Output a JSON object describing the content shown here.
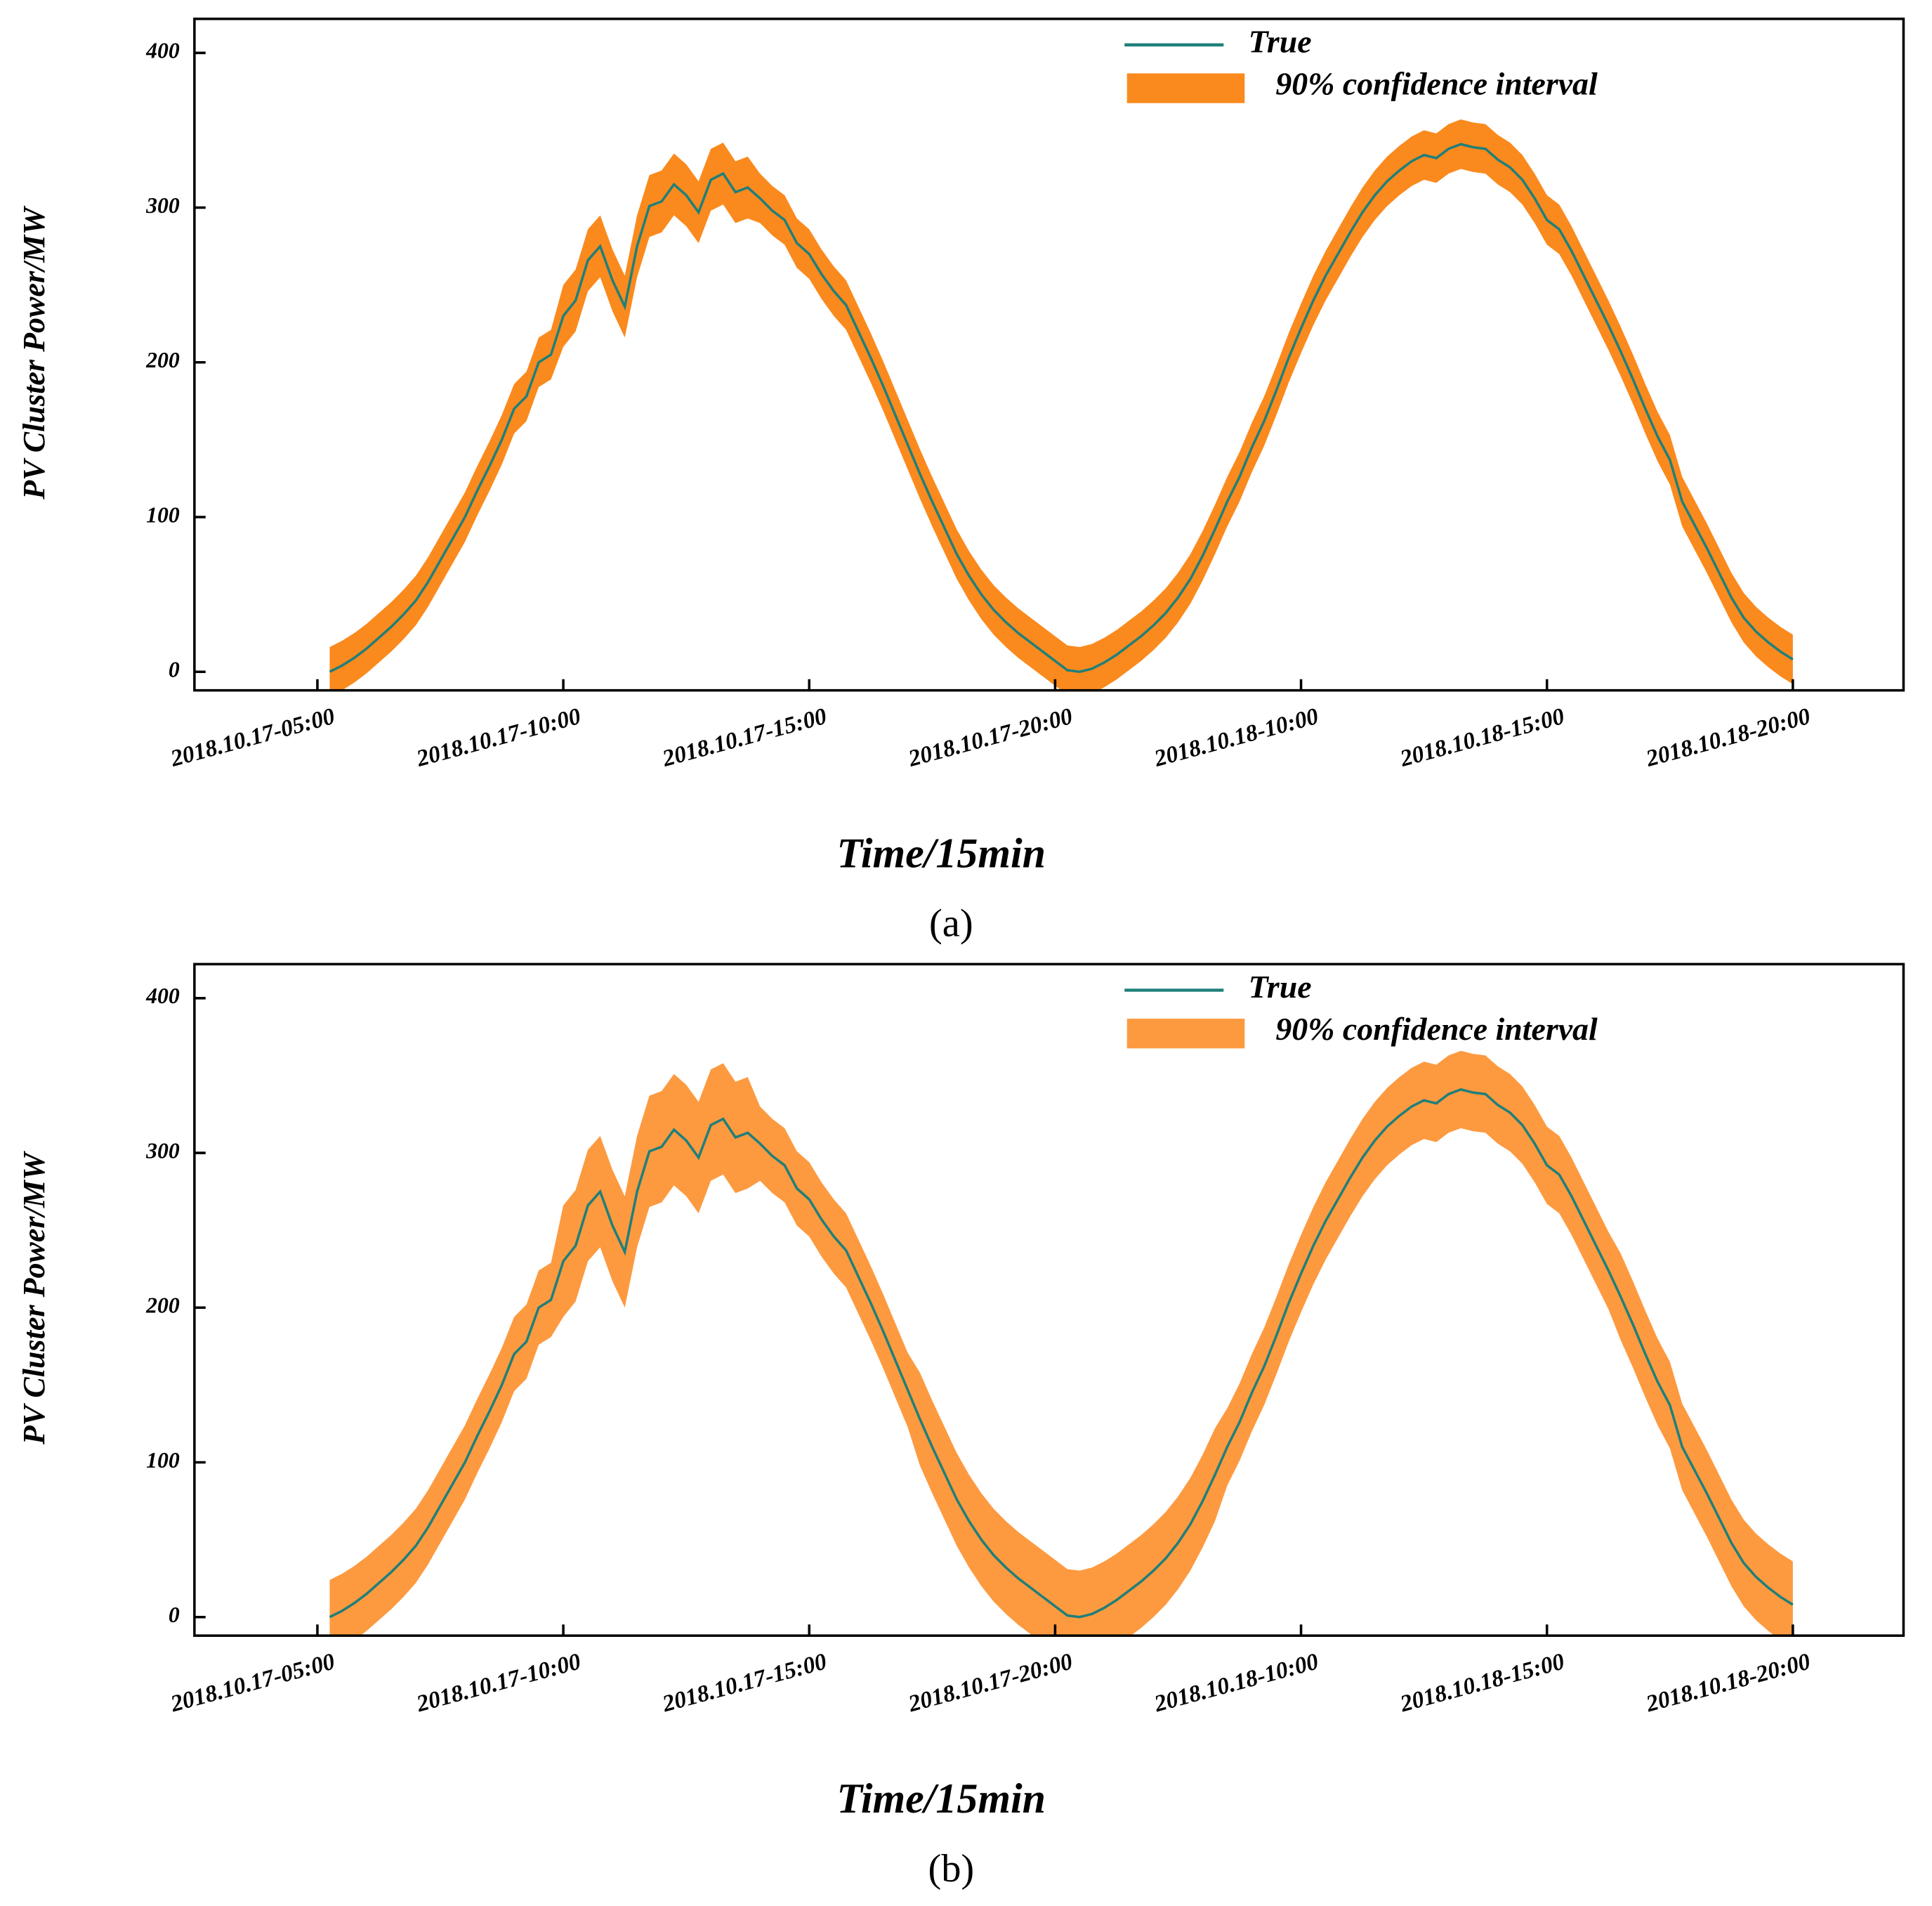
{
  "chart_data": [
    {
      "type": "line",
      "caption": "(a)",
      "xlabel": "Time/15min",
      "ylabel": "PV Cluster Power/MW",
      "legend": "upper right",
      "x": [
        1,
        2,
        3,
        4,
        5,
        6,
        7,
        8,
        9,
        10,
        11,
        12,
        13,
        14,
        15,
        16,
        17,
        18,
        19,
        20,
        21,
        22,
        23,
        24,
        25,
        26,
        27,
        28,
        29,
        30,
        31,
        32,
        33,
        34,
        35,
        36,
        37,
        38,
        39,
        40,
        41,
        42,
        43,
        44,
        45,
        46,
        47,
        48,
        49,
        50,
        51,
        52,
        53,
        54,
        55,
        56,
        57,
        58,
        59,
        60,
        61,
        62,
        63,
        64,
        65,
        66,
        67,
        68,
        69,
        70,
        71,
        72,
        73,
        74,
        75,
        76,
        77,
        78,
        79,
        80,
        81,
        82,
        83,
        84,
        85,
        86,
        87,
        88,
        89,
        90,
        91,
        92,
        93,
        94,
        95,
        96,
        97,
        98,
        99,
        100,
        101,
        102,
        103,
        104,
        105,
        106,
        107,
        108,
        109,
        110,
        111,
        112,
        113,
        114,
        115,
        116,
        117,
        118,
        119,
        120
      ],
      "xlim": [
        -10,
        129
      ],
      "xticks": [
        {
          "value": 0,
          "label": "2018.10.17-05:00"
        },
        {
          "value": 20,
          "label": "2018.10.17-10:00"
        },
        {
          "value": 40,
          "label": "2018.10.17-15:00"
        },
        {
          "value": 60,
          "label": "2018.10.17-20:00"
        },
        {
          "value": 80,
          "label": "2018.10.18-10:00"
        },
        {
          "value": 100,
          "label": "2018.10.18-15:00"
        },
        {
          "value": 120,
          "label": "2018.10.18-20:00"
        }
      ],
      "ylim": [
        -12,
        422
      ],
      "yticks": [
        0,
        100,
        200,
        300,
        400
      ],
      "series": [
        {
          "name": "True",
          "color": "#1f7f7a",
          "values": [
            0,
            4,
            9,
            15,
            22,
            29,
            37,
            46,
            58,
            72,
            86,
            100,
            117,
            133,
            150,
            170,
            178,
            200,
            205,
            230,
            240,
            266,
            275,
            253,
            236,
            275,
            301,
            304,
            315,
            308,
            297,
            318,
            322,
            310,
            313,
            306,
            298,
            292,
            277,
            270,
            257,
            246,
            237,
            220,
            203,
            185,
            166,
            147,
            128,
            110,
            93,
            76,
            62,
            50,
            40,
            32,
            25,
            19,
            13,
            7,
            1,
            0,
            2,
            6,
            11,
            17,
            23,
            30,
            38,
            48,
            60,
            75,
            92,
            110,
            126,
            145,
            162,
            182,
            203,
            222,
            240,
            256,
            270,
            284,
            297,
            308,
            317,
            324,
            330,
            334,
            332,
            338,
            341,
            339,
            338,
            331,
            326,
            318,
            306,
            292,
            286,
            272,
            256,
            240,
            224,
            207,
            189,
            170,
            152,
            137,
            110,
            95,
            80,
            64,
            48,
            35,
            26,
            19,
            13,
            8
          ]
        },
        {
          "name": "90% confidence interval",
          "color": "#fa8a1e",
          "upper": [
            16,
            20,
            25,
            31,
            38,
            45,
            53,
            62,
            74,
            88,
            102,
            116,
            133,
            149,
            166,
            186,
            194,
            216,
            221,
            250,
            260,
            286,
            295,
            273,
            256,
            295,
            321,
            324,
            335,
            328,
            317,
            338,
            342,
            330,
            333,
            322,
            314,
            308,
            293,
            286,
            273,
            262,
            253,
            236,
            219,
            201,
            182,
            163,
            144,
            126,
            109,
            92,
            78,
            66,
            56,
            48,
            41,
            35,
            29,
            23,
            17,
            16,
            18,
            22,
            27,
            33,
            39,
            46,
            54,
            64,
            76,
            91,
            108,
            126,
            142,
            161,
            178,
            198,
            219,
            238,
            256,
            272,
            286,
            300,
            313,
            324,
            333,
            340,
            346,
            350,
            348,
            354,
            357,
            355,
            354,
            347,
            342,
            334,
            322,
            308,
            302,
            288,
            272,
            256,
            240,
            223,
            205,
            186,
            168,
            153,
            126,
            111,
            96,
            80,
            64,
            51,
            42,
            35,
            29,
            24
          ],
          "lower": [
            -16,
            -12,
            -7,
            -1,
            6,
            13,
            21,
            30,
            42,
            56,
            70,
            84,
            101,
            117,
            134,
            154,
            162,
            184,
            189,
            210,
            220,
            246,
            255,
            233,
            216,
            255,
            281,
            284,
            295,
            288,
            277,
            298,
            302,
            290,
            293,
            290,
            282,
            276,
            261,
            254,
            241,
            230,
            221,
            204,
            187,
            169,
            150,
            131,
            112,
            94,
            77,
            60,
            46,
            34,
            24,
            16,
            9,
            3,
            -3,
            -9,
            -15,
            -16,
            -14,
            -10,
            -5,
            1,
            7,
            14,
            22,
            32,
            44,
            59,
            76,
            94,
            110,
            129,
            146,
            166,
            187,
            206,
            224,
            240,
            254,
            268,
            281,
            292,
            301,
            308,
            314,
            318,
            316,
            322,
            325,
            323,
            322,
            315,
            310,
            302,
            290,
            276,
            270,
            256,
            240,
            224,
            208,
            191,
            173,
            154,
            136,
            121,
            94,
            79,
            64,
            48,
            32,
            19,
            10,
            3,
            -3,
            -8
          ]
        }
      ]
    },
    {
      "type": "line",
      "caption": "(b)",
      "xlabel": "Time/15min",
      "ylabel": "PV Cluster Power/MW",
      "legend": "upper right",
      "x": [
        1,
        2,
        3,
        4,
        5,
        6,
        7,
        8,
        9,
        10,
        11,
        12,
        13,
        14,
        15,
        16,
        17,
        18,
        19,
        20,
        21,
        22,
        23,
        24,
        25,
        26,
        27,
        28,
        29,
        30,
        31,
        32,
        33,
        34,
        35,
        36,
        37,
        38,
        39,
        40,
        41,
        42,
        43,
        44,
        45,
        46,
        47,
        48,
        49,
        50,
        51,
        52,
        53,
        54,
        55,
        56,
        57,
        58,
        59,
        60,
        61,
        62,
        63,
        64,
        65,
        66,
        67,
        68,
        69,
        70,
        71,
        72,
        73,
        74,
        75,
        76,
        77,
        78,
        79,
        80,
        81,
        82,
        83,
        84,
        85,
        86,
        87,
        88,
        89,
        90,
        91,
        92,
        93,
        94,
        95,
        96,
        97,
        98,
        99,
        100,
        101,
        102,
        103,
        104,
        105,
        106,
        107,
        108,
        109,
        110,
        111,
        112,
        113,
        114,
        115,
        116,
        117,
        118,
        119,
        120
      ],
      "xlim": [
        -10,
        129
      ],
      "xticks": [
        {
          "value": 0,
          "label": "2018.10.17-05:00"
        },
        {
          "value": 20,
          "label": "2018.10.17-10:00"
        },
        {
          "value": 40,
          "label": "2018.10.17-15:00"
        },
        {
          "value": 60,
          "label": "2018.10.17-20:00"
        },
        {
          "value": 80,
          "label": "2018.10.18-10:00"
        },
        {
          "value": 100,
          "label": "2018.10.18-15:00"
        },
        {
          "value": 120,
          "label": "2018.10.18-20:00"
        }
      ],
      "ylim": [
        -12,
        422
      ],
      "yticks": [
        0,
        100,
        200,
        300,
        400
      ],
      "series": [
        {
          "name": "True",
          "color": "#1f7f7a",
          "values": [
            0,
            4,
            9,
            15,
            22,
            29,
            37,
            46,
            58,
            72,
            86,
            100,
            117,
            133,
            150,
            170,
            178,
            200,
            205,
            230,
            240,
            266,
            275,
            253,
            236,
            275,
            301,
            304,
            315,
            308,
            297,
            318,
            322,
            310,
            313,
            306,
            298,
            292,
            277,
            270,
            257,
            246,
            237,
            220,
            203,
            185,
            166,
            147,
            128,
            110,
            93,
            76,
            62,
            50,
            40,
            32,
            25,
            19,
            13,
            7,
            1,
            0,
            2,
            6,
            11,
            17,
            23,
            30,
            38,
            48,
            60,
            75,
            92,
            110,
            126,
            145,
            162,
            182,
            203,
            222,
            240,
            256,
            270,
            284,
            297,
            308,
            317,
            324,
            330,
            334,
            332,
            338,
            341,
            339,
            338,
            331,
            326,
            318,
            306,
            292,
            286,
            272,
            256,
            240,
            224,
            207,
            189,
            170,
            152,
            137,
            110,
            95,
            80,
            64,
            48,
            35,
            26,
            19,
            13,
            8
          ]
        },
        {
          "name": "90% confidence interval",
          "color": "#fd9a40",
          "upper": [
            24,
            28,
            33,
            39,
            46,
            53,
            61,
            70,
            82,
            96,
            110,
            124,
            141,
            157,
            174,
            194,
            202,
            224,
            229,
            266,
            276,
            302,
            311,
            289,
            272,
            311,
            337,
            340,
            351,
            344,
            333,
            354,
            358,
            346,
            349,
            330,
            322,
            316,
            301,
            294,
            281,
            270,
            261,
            244,
            227,
            209,
            190,
            171,
            158,
            140,
            123,
            106,
            92,
            80,
            70,
            62,
            55,
            49,
            43,
            37,
            31,
            30,
            32,
            36,
            41,
            47,
            53,
            60,
            68,
            78,
            90,
            105,
            122,
            135,
            151,
            170,
            187,
            207,
            228,
            247,
            265,
            281,
            295,
            309,
            322,
            333,
            342,
            349,
            355,
            359,
            357,
            363,
            366,
            364,
            363,
            356,
            351,
            343,
            331,
            317,
            311,
            297,
            281,
            265,
            249,
            235,
            217,
            198,
            180,
            165,
            138,
            123,
            108,
            92,
            76,
            63,
            54,
            47,
            41,
            36
          ],
          "lower": [
            -24,
            -20,
            -15,
            -9,
            -2,
            5,
            13,
            22,
            34,
            48,
            62,
            76,
            93,
            109,
            126,
            146,
            154,
            176,
            181,
            194,
            204,
            230,
            239,
            217,
            200,
            239,
            265,
            268,
            279,
            272,
            261,
            282,
            286,
            274,
            277,
            282,
            274,
            268,
            253,
            246,
            233,
            222,
            213,
            196,
            179,
            161,
            142,
            123,
            98,
            80,
            63,
            46,
            32,
            20,
            10,
            2,
            -5,
            -11,
            -17,
            -23,
            -29,
            -30,
            -28,
            -24,
            -19,
            -13,
            -7,
            0,
            8,
            18,
            30,
            45,
            62,
            85,
            101,
            120,
            137,
            157,
            178,
            197,
            215,
            231,
            245,
            259,
            272,
            283,
            292,
            299,
            305,
            309,
            307,
            313,
            316,
            314,
            313,
            306,
            301,
            293,
            281,
            267,
            261,
            247,
            231,
            215,
            199,
            179,
            161,
            142,
            124,
            109,
            82,
            67,
            52,
            36,
            20,
            7,
            -2,
            -9,
            -15,
            -20
          ]
        }
      ]
    }
  ]
}
